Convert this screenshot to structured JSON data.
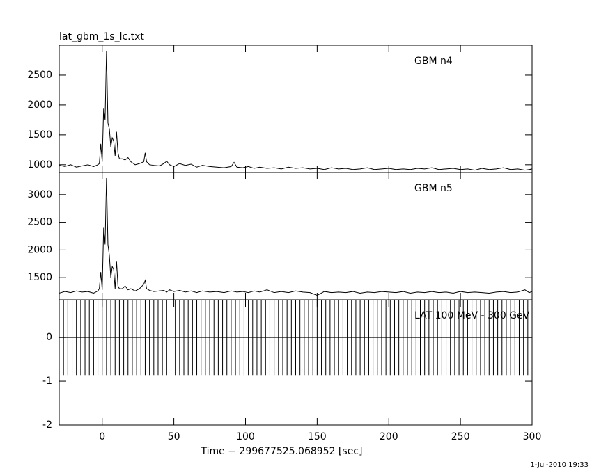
{
  "chart_data": [
    {
      "type": "line",
      "title": "lat_gbm_1s_lc.txt",
      "annotation": "GBM n4",
      "xlim": [
        -30,
        300
      ],
      "ylim": [
        870,
        3000
      ],
      "yticks": [
        1000,
        1500,
        2000,
        2500
      ],
      "x": [
        -30,
        -26,
        -22,
        -18,
        -14,
        -10,
        -6,
        -3,
        -2,
        -1,
        0,
        1,
        2,
        3,
        4,
        5,
        6,
        7,
        8,
        9,
        10,
        11,
        12,
        14,
        16,
        18,
        20,
        23,
        26,
        29,
        30,
        31,
        33,
        36,
        40,
        43,
        45,
        47,
        50,
        54,
        58,
        62,
        66,
        70,
        75,
        80,
        85,
        90,
        92,
        94,
        98,
        102,
        106,
        110,
        115,
        120,
        125,
        130,
        135,
        140,
        145,
        150,
        155,
        160,
        165,
        170,
        175,
        180,
        185,
        190,
        195,
        200,
        205,
        210,
        215,
        220,
        225,
        230,
        235,
        240,
        245,
        250,
        255,
        260,
        265,
        270,
        275,
        280,
        285,
        290,
        295,
        298,
        300
      ],
      "values": [
        990,
        970,
        1000,
        960,
        980,
        1000,
        970,
        1000,
        1020,
        1350,
        1050,
        1950,
        1750,
        2900,
        1700,
        1600,
        1300,
        1450,
        1400,
        1150,
        1550,
        1200,
        1100,
        1100,
        1080,
        1120,
        1050,
        1000,
        1020,
        1050,
        1200,
        1050,
        1000,
        990,
        980,
        1020,
        1060,
        1000,
        970,
        1020,
        990,
        1010,
        960,
        990,
        970,
        960,
        950,
        970,
        1040,
        960,
        950,
        970,
        940,
        960,
        940,
        950,
        930,
        960,
        940,
        950,
        930,
        940,
        920,
        950,
        930,
        940,
        920,
        930,
        950,
        920,
        930,
        940,
        920,
        930,
        920,
        940,
        930,
        950,
        920,
        930,
        940,
        920,
        930,
        910,
        940,
        920,
        930,
        950,
        920,
        930,
        910,
        920,
        930
      ],
      "color": "#000000"
    },
    {
      "type": "line",
      "annotation": "GBM n5",
      "xlim": [
        -30,
        300
      ],
      "ylim": [
        1100,
        3400
      ],
      "yticks": [
        1500,
        2000,
        2500,
        3000
      ],
      "x": [
        -30,
        -26,
        -22,
        -18,
        -14,
        -10,
        -6,
        -3,
        -2,
        -1,
        0,
        1,
        2,
        3,
        4,
        5,
        6,
        7,
        8,
        9,
        10,
        11,
        12,
        14,
        16,
        18,
        20,
        23,
        26,
        29,
        30,
        31,
        33,
        36,
        40,
        43,
        45,
        47,
        50,
        54,
        58,
        62,
        66,
        70,
        75,
        80,
        85,
        90,
        92,
        94,
        98,
        102,
        106,
        110,
        115,
        120,
        125,
        130,
        135,
        140,
        145,
        150,
        155,
        160,
        165,
        170,
        175,
        180,
        185,
        190,
        195,
        200,
        205,
        210,
        215,
        220,
        225,
        230,
        235,
        240,
        245,
        250,
        255,
        260,
        265,
        270,
        275,
        280,
        285,
        290,
        295,
        298,
        300
      ],
      "values": [
        1220,
        1250,
        1230,
        1260,
        1240,
        1250,
        1220,
        1260,
        1300,
        1600,
        1280,
        2400,
        2100,
        3300,
        2100,
        1900,
        1500,
        1700,
        1650,
        1300,
        1800,
        1350,
        1300,
        1300,
        1350,
        1280,
        1300,
        1260,
        1300,
        1380,
        1450,
        1300,
        1270,
        1250,
        1260,
        1270,
        1240,
        1280,
        1250,
        1270,
        1240,
        1260,
        1230,
        1260,
        1240,
        1250,
        1230,
        1260,
        1250,
        1240,
        1250,
        1230,
        1260,
        1240,
        1280,
        1230,
        1250,
        1230,
        1260,
        1240,
        1230,
        1180,
        1250,
        1230,
        1240,
        1230,
        1250,
        1220,
        1240,
        1230,
        1250,
        1240,
        1230,
        1250,
        1220,
        1240,
        1230,
        1250,
        1230,
        1240,
        1220,
        1250,
        1230,
        1240,
        1230,
        1220,
        1240,
        1250,
        1230,
        1240,
        1280,
        1230,
        1250
      ],
      "color": "#000000"
    },
    {
      "type": "errorbar",
      "annotation": "LAT 100 MeV - 300 GeV",
      "xlabel": "Time − 299677525.068952 [sec]",
      "xlim": [
        -30,
        300
      ],
      "xticks": [
        0,
        50,
        100,
        150,
        200,
        250,
        300
      ],
      "ylim": [
        -2,
        0.86
      ],
      "yticks": [
        -2,
        -1,
        0
      ],
      "x": [
        -30,
        -27,
        -24,
        -21,
        -18,
        -15,
        -12,
        -9,
        -6,
        -3,
        0,
        3,
        6,
        9,
        12,
        15,
        18,
        21,
        24,
        27,
        30,
        33,
        36,
        39,
        42,
        45,
        48,
        51,
        54,
        57,
        60,
        63,
        66,
        69,
        72,
        75,
        78,
        81,
        84,
        87,
        90,
        93,
        96,
        99,
        102,
        105,
        108,
        111,
        114,
        117,
        120,
        123,
        126,
        129,
        132,
        135,
        138,
        141,
        144,
        147,
        150,
        153,
        156,
        159,
        162,
        165,
        168,
        171,
        174,
        177,
        180,
        183,
        186,
        189,
        192,
        195,
        198,
        201,
        204,
        207,
        210,
        213,
        216,
        219,
        222,
        225,
        228,
        231,
        234,
        237,
        240,
        243,
        246,
        249,
        252,
        255,
        258,
        261,
        264,
        267,
        270,
        273,
        276,
        279,
        282,
        285,
        288,
        291,
        294,
        297,
        300
      ],
      "values": [
        0,
        0,
        0,
        0,
        0,
        0,
        0,
        0,
        0,
        0,
        0,
        0,
        0,
        0,
        0,
        0,
        0,
        0,
        0,
        0,
        0,
        0,
        0,
        0,
        0,
        0,
        0,
        0,
        0,
        0,
        0,
        0,
        0,
        0,
        0,
        0,
        0,
        0,
        0,
        0,
        0,
        0,
        0,
        0,
        0,
        0,
        0,
        0,
        0,
        0,
        0,
        0,
        0,
        0,
        0,
        0,
        0,
        0,
        0,
        0,
        0,
        0,
        0,
        0,
        0,
        0,
        0,
        0,
        0,
        0,
        0,
        0,
        0,
        0,
        0,
        0,
        0,
        0,
        0,
        0,
        0,
        0,
        0,
        0,
        0,
        0,
        0,
        0,
        0,
        0,
        0,
        0,
        0,
        0,
        0,
        0,
        0,
        0,
        0,
        0,
        0,
        0,
        0,
        0,
        0,
        0,
        0,
        0,
        0,
        0,
        0
      ],
      "errors": [
        0.86,
        0.86,
        0.86,
        0.86,
        0.86,
        0.86,
        0.86,
        0.86,
        0.86,
        0.86,
        0.86,
        0.86,
        0.86,
        0.86,
        0.86,
        0.86,
        0.86,
        0.86,
        0.86,
        0.86,
        0.86,
        0.86,
        0.86,
        0.86,
        0.86,
        0.86,
        0.86,
        0.86,
        0.86,
        0.86,
        0.86,
        0.86,
        0.86,
        0.86,
        0.86,
        0.86,
        0.86,
        0.86,
        0.86,
        0.86,
        0.86,
        0.86,
        0.86,
        0.86,
        0.86,
        0.86,
        0.86,
        0.86,
        0.86,
        0.86,
        0.86,
        0.86,
        0.86,
        0.86,
        0.86,
        0.86,
        0.86,
        0.86,
        0.86,
        0.86,
        0.86,
        0.86,
        0.86,
        0.86,
        0.86,
        0.86,
        0.86,
        0.86,
        0.86,
        0.86,
        0.86,
        0.86,
        0.86,
        0.86,
        0.86,
        0.86,
        0.86,
        0.86,
        0.86,
        0.86,
        0.86,
        0.86,
        0.86,
        0.86,
        0.86,
        0.86,
        0.86,
        0.86,
        0.86,
        0.86,
        0.86,
        0.86,
        0.86,
        0.86,
        0.86,
        0.86,
        0.86,
        0.86,
        0.86,
        0.86,
        0.86,
        0.86,
        0.86,
        0.86,
        0.86,
        0.86,
        0.86,
        0.86,
        0.86,
        0.86,
        0.86
      ],
      "color": "#000000"
    }
  ],
  "timestamp": "1-Jul-2010 19:33"
}
